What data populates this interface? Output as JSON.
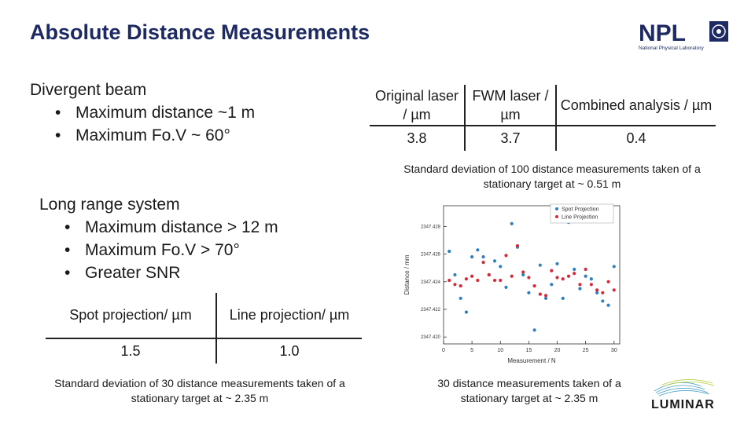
{
  "slide": {
    "title": "Absolute Distance Measurements",
    "logo": {
      "name": "NPL",
      "subtitle": "National Physical Laboratory"
    },
    "divergent": {
      "heading": "Divergent beam",
      "bullets": [
        "Maximum distance ~1 m",
        "Maximum Fo.V ~ 60°"
      ]
    },
    "long_range": {
      "heading": "Long range system",
      "bullets": [
        "Maximum distance > 12 m",
        "Maximum Fo.V > 70°",
        "Greater SNR"
      ]
    },
    "table_top": {
      "headers": [
        "Original laser / µm",
        "FWM laser / µm",
        "Combined analysis / µm"
      ],
      "values": [
        "3.8",
        "3.7",
        "0.4"
      ],
      "caption": "Standard deviation of 100 distance measurements taken of a stationary target at ~ 0.51 m"
    },
    "table_bottom": {
      "headers": [
        "Spot projection/ µm",
        "Line projection/ µm"
      ],
      "values": [
        "1.5",
        "1.0"
      ],
      "caption": "Standard deviation of 30 distance measurements taken of a stationary target at ~ 2.35 m"
    },
    "chart_caption": "30 distance measurements taken of a stationary target at ~ 2.35 m",
    "luminar_logo": "LUMINAR",
    "colors": {
      "title": "#1d2a63",
      "spot": "#2f7fc1",
      "line": "#d62a3a"
    }
  },
  "chart_data": {
    "type": "scatter",
    "xlabel": "Measurement / N",
    "ylabel": "Distance / mm",
    "xlim": [
      0,
      31
    ],
    "ylim": [
      2347.4195,
      2347.4295
    ],
    "xticks": [
      0,
      5,
      10,
      15,
      20,
      25,
      30
    ],
    "yticks": [
      2347.42,
      2347.422,
      2347.424,
      2347.426,
      2347.428
    ],
    "ytick_labels": [
      "2347.420",
      "2347.422",
      "2347.424",
      "2347.426",
      "2347.428"
    ],
    "legend": "top-right",
    "series": [
      {
        "name": "Spot Projection",
        "color": "#2f7fc1",
        "x": [
          1,
          2,
          3,
          4,
          5,
          6,
          7,
          8,
          9,
          10,
          11,
          12,
          13,
          14,
          15,
          16,
          17,
          18,
          19,
          20,
          21,
          22,
          23,
          24,
          25,
          26,
          27,
          28,
          29,
          30
        ],
        "y": [
          2347.4262,
          2347.4245,
          2347.4228,
          2347.4218,
          2347.4258,
          2347.4263,
          2347.4258,
          2347.4245,
          2347.4255,
          2347.4251,
          2347.4236,
          2347.4282,
          2347.4265,
          2347.4245,
          2347.4232,
          2347.4205,
          2347.4252,
          2347.4228,
          2347.4238,
          2347.4253,
          2347.4228,
          2347.4283,
          2347.4249,
          2347.4235,
          2347.4244,
          2347.4242,
          2347.4232,
          2347.4226,
          2347.4223,
          2347.4251
        ]
      },
      {
        "name": "Line Projection",
        "color": "#d62a3a",
        "x": [
          1,
          2,
          3,
          4,
          5,
          6,
          7,
          8,
          9,
          10,
          11,
          12,
          13,
          14,
          15,
          16,
          17,
          18,
          19,
          20,
          21,
          22,
          23,
          24,
          25,
          26,
          27,
          28,
          29,
          30
        ],
        "y": [
          2347.4241,
          2347.4238,
          2347.4237,
          2347.4242,
          2347.4244,
          2347.4241,
          2347.4254,
          2347.4245,
          2347.4241,
          2347.4241,
          2347.4259,
          2347.4244,
          2347.4266,
          2347.4247,
          2347.4243,
          2347.4237,
          2347.4231,
          2347.423,
          2347.4248,
          2347.4243,
          2347.4242,
          2347.4244,
          2347.4246,
          2347.4238,
          2347.4249,
          2347.4238,
          2347.4234,
          2347.4232,
          2347.424,
          2347.4234
        ]
      }
    ]
  }
}
